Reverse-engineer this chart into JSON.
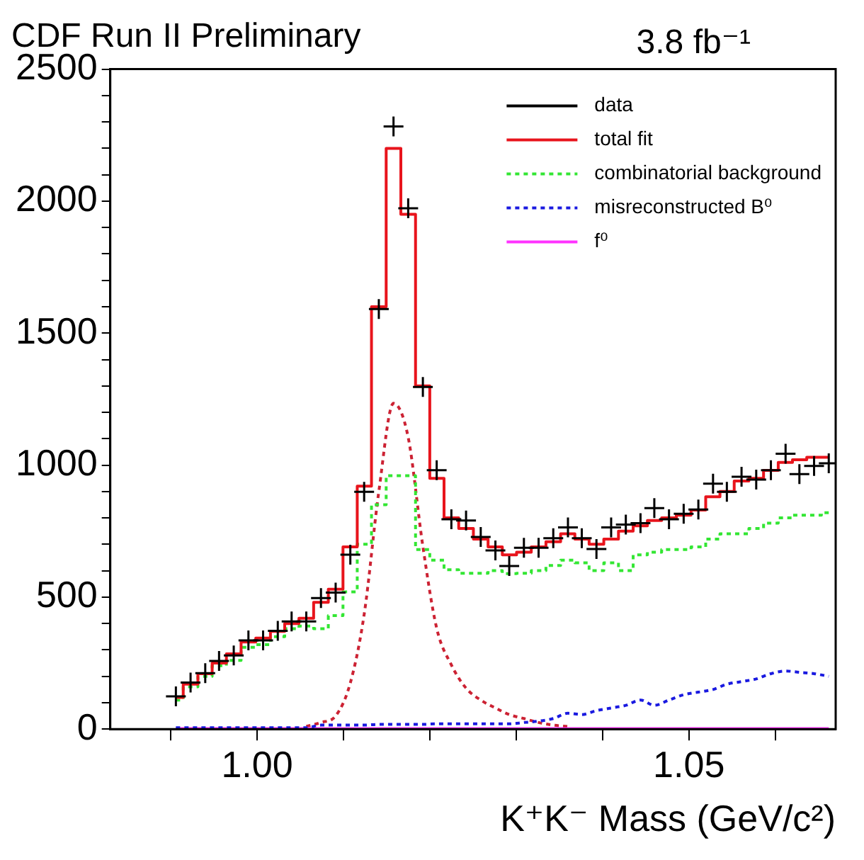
{
  "chart_data": {
    "type": "line",
    "title": "CDF Run II Preliminary",
    "annotations": [
      "3.8 fb⁻¹"
    ],
    "xlabel": "K⁺K⁻ Mass (GeV/c²)",
    "x": [
      0.9906,
      0.9923,
      0.994,
      0.9956,
      0.9973,
      0.999,
      1.0007,
      1.0024,
      1.004,
      1.0057,
      1.0074,
      1.0091,
      1.0108,
      1.0124,
      1.0141,
      1.0158,
      1.0175,
      1.0192,
      1.0208,
      1.0225,
      1.0242,
      1.0259,
      1.0276,
      1.0292,
      1.0309,
      1.0326,
      1.0343,
      1.036,
      1.0376,
      1.0393,
      1.041,
      1.0427,
      1.0444,
      1.046,
      1.0477,
      1.0494,
      1.0511,
      1.0528,
      1.0544,
      1.0561,
      1.0578,
      1.0595,
      1.0612,
      1.0628,
      1.0645,
      1.0662
    ],
    "series": [
      {
        "name": "data",
        "type": "scatter",
        "marker": "cross",
        "color": "#000000",
        "values": [
          124,
          176,
          212,
          258,
          279,
          336,
          336,
          372,
          408,
          408,
          496,
          517,
          661,
          899,
          1591,
          2283,
          1973,
          1296,
          981,
          795,
          790,
          728,
          677,
          618,
          687,
          687,
          723,
          764,
          723,
          682,
          764,
          775,
          780,
          837,
          795,
          816,
          832,
          930,
          899,
          956,
          945,
          981,
          1043,
          966,
          997,
          1007
        ]
      },
      {
        "name": "total fit",
        "type": "step",
        "line_style": "solid",
        "color": "#e8141c",
        "values": [
          120,
          170,
          210,
          250,
          285,
          330,
          345,
          370,
          400,
          420,
          480,
          530,
          690,
          920,
          1600,
          2200,
          1950,
          1300,
          950,
          800,
          760,
          720,
          690,
          660,
          670,
          690,
          710,
          740,
          720,
          700,
          720,
          750,
          770,
          790,
          800,
          810,
          830,
          880,
          900,
          940,
          950,
          980,
          1010,
          1020,
          1030,
          1030
        ]
      },
      {
        "name": "combinatorial background",
        "type": "step",
        "line_style": "dotted",
        "color": "#33e633",
        "values": [
          110,
          160,
          200,
          240,
          260,
          310,
          320,
          350,
          380,
          390,
          380,
          430,
          520,
          700,
          850,
          960,
          960,
          680,
          640,
          604,
          590,
          590,
          600,
          589,
          590,
          600,
          620,
          640,
          630,
          600,
          630,
          600,
          660,
          670,
          680,
          680,
          690,
          720,
          740,
          740,
          760,
          780,
          800,
          810,
          810,
          820
        ]
      },
      {
        "name": "misreconstructed B⁰",
        "type": "line",
        "line_style": "dotted",
        "color": "#1a1ae0",
        "values": [
          5,
          5,
          5,
          5,
          5,
          5,
          5,
          5,
          5,
          5,
          15,
          15,
          15,
          15,
          18,
          18,
          18,
          18,
          20,
          20,
          20,
          20,
          20,
          20,
          25,
          30,
          40,
          60,
          55,
          70,
          80,
          90,
          110,
          90,
          110,
          130,
          140,
          150,
          170,
          180,
          190,
          210,
          220,
          215,
          210,
          200
        ]
      },
      {
        "name": "f⁰",
        "type": "line",
        "line_style": "solid",
        "color": "#ff33ff",
        "values": [
          2,
          2,
          2,
          2,
          2,
          2,
          2,
          2,
          2,
          2,
          2,
          2,
          2,
          2,
          2,
          2,
          2,
          2,
          2,
          2,
          2,
          2,
          2,
          2,
          2,
          2,
          2,
          2,
          2,
          2,
          2,
          2,
          2,
          2,
          2,
          2,
          2,
          2,
          2,
          2,
          2,
          2,
          2,
          2,
          2,
          2
        ]
      },
      {
        "type": "line",
        "line_style": "dotted",
        "color": "#cc2233",
        "values": [
          null,
          null,
          null,
          null,
          null,
          null,
          null,
          null,
          null,
          10,
          25,
          50,
          175,
          434,
          900,
          1234,
          1105,
          692,
          382,
          243,
          155,
          110,
          80,
          55,
          40,
          25,
          15,
          10,
          null,
          null,
          null,
          null,
          null,
          null,
          null,
          null,
          null,
          null,
          null,
          null,
          null,
          null,
          null,
          null,
          null,
          null
        ]
      }
    ],
    "xlim": [
      0.983,
      1.067
    ],
    "xticks": [
      {
        "value": 0.99,
        "label": null
      },
      {
        "value": 1.0,
        "label": "1.00"
      },
      {
        "value": 1.01,
        "label": null
      },
      {
        "value": 1.02,
        "label": null
      },
      {
        "value": 1.03,
        "label": null
      },
      {
        "value": 1.04,
        "label": null
      },
      {
        "value": 1.05,
        "label": "1.05"
      },
      {
        "value": 1.06,
        "label": null
      }
    ],
    "ylim": [
      0,
      2500
    ],
    "yticks": [
      0,
      {
        "value": 100,
        "label": null
      },
      {
        "value": 200,
        "label": null
      },
      {
        "value": 300,
        "label": null
      },
      {
        "value": 400,
        "label": null
      },
      500,
      {
        "value": 600,
        "label": null
      },
      {
        "value": 700,
        "label": null
      },
      {
        "value": 800,
        "label": null
      },
      {
        "value": 900,
        "label": null
      },
      1000,
      {
        "value": 1100,
        "label": null
      },
      {
        "value": 1200,
        "label": null
      },
      {
        "value": 1300,
        "label": null
      },
      {
        "value": 1400,
        "label": null
      },
      1500,
      {
        "value": 1600,
        "label": null
      },
      {
        "value": 1700,
        "label": null
      },
      {
        "value": 1800,
        "label": null
      },
      {
        "value": 1900,
        "label": null
      },
      2000,
      {
        "value": 2100,
        "label": null
      },
      {
        "value": 2200,
        "label": null
      },
      {
        "value": 2300,
        "label": null
      },
      {
        "value": 2400,
        "label": null
      },
      2500
    ],
    "grid": false,
    "legend": "top right"
  }
}
